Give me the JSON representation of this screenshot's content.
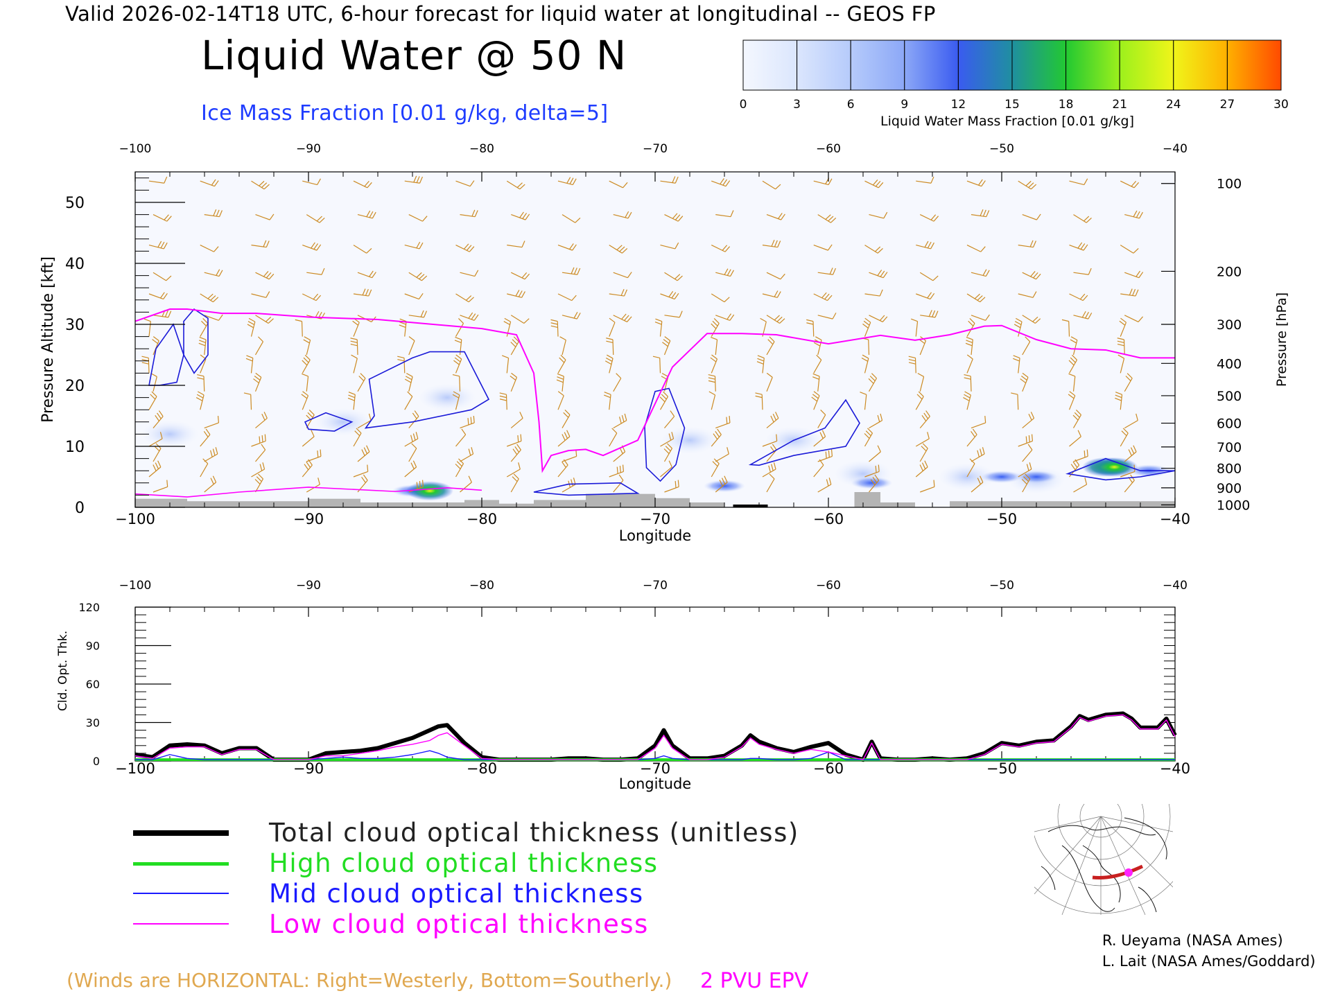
{
  "header": {
    "line": "Valid 2026-02-14T18 UTC, 6-hour forecast for liquid water at longitudinal -- GEOS FP",
    "title": "Liquid Water @ 50 N",
    "contour_label": "Ice Mass Fraction [0.01 g/kg, delta=5]"
  },
  "colorbar": {
    "label": "Liquid Water Mass Fraction [0.01 g/kg]",
    "ticks": [
      "0",
      "3",
      "6",
      "9",
      "12",
      "15",
      "18",
      "21",
      "24",
      "27",
      "30"
    ],
    "colors": [
      "#f4f7fe",
      "#dbe6fd",
      "#b6cbfb",
      "#8ca8f7",
      "#3a5bf0",
      "#1f8fa0",
      "#22c832",
      "#9cf01c",
      "#f0f51a",
      "#ffb000",
      "#ff4a00"
    ]
  },
  "legend": [
    {
      "label": "Total cloud optical thickness (unitless)",
      "color": "#000000"
    },
    {
      "label": "High cloud optical thickness",
      "color": "#22dd22"
    },
    {
      "label": "Mid cloud optical thickness",
      "color": "#1a1aff"
    },
    {
      "label": "Low cloud optical thickness",
      "color": "#ff00ff"
    }
  ],
  "notes": {
    "winds": "(Winds are HORIZONTAL: Right=Westerly, Bottom=Southerly.)",
    "pv": "2 PVU EPV"
  },
  "credits": [
    "R. Ueyama (NASA Ames)",
    "L. Lait (NASA Ames/Goddard)"
  ],
  "chart_data": [
    {
      "type": "heatmap",
      "title": "Liquid Water @ 50 N",
      "xlabel": "Longitude",
      "ylabel": "Pressure Altitude [kft]",
      "y2label": "Pressure [hPa]",
      "xlim": [
        -100,
        -40
      ],
      "ylim": [
        0,
        55
      ],
      "xticks": [
        "-100",
        "-90",
        "-80",
        "-70",
        "-60",
        "-50",
        "-40"
      ],
      "yticks": [
        "0",
        "10",
        "20",
        "30",
        "40",
        "50"
      ],
      "pressure_ticks": [
        {
          "label": "100",
          "kft": 53.1
        },
        {
          "label": "200",
          "kft": 38.7
        },
        {
          "label": "300",
          "kft": 30.0
        },
        {
          "label": "400",
          "kft": 23.6
        },
        {
          "label": "500",
          "kft": 18.3
        },
        {
          "label": "600",
          "kft": 13.8
        },
        {
          "label": "700",
          "kft": 9.9
        },
        {
          "label": "800",
          "kft": 6.4
        },
        {
          "label": "900",
          "kft": 3.2
        },
        {
          "label": "1000",
          "kft": 0.4
        }
      ],
      "liquid_water_blobs": [
        {
          "lon": -84.0,
          "kft": 2.7,
          "value": 12
        },
        {
          "lon": -83.0,
          "kft": 2.7,
          "value": 16
        },
        {
          "lon": -66.0,
          "kft": 3.5,
          "value": 9
        },
        {
          "lon": -57.5,
          "kft": 4.0,
          "value": 9
        },
        {
          "lon": -50.0,
          "kft": 5.0,
          "value": 9
        },
        {
          "lon": -48.0,
          "kft": 5.0,
          "value": 8
        },
        {
          "lon": -44.0,
          "kft": 6.6,
          "value": 16
        },
        {
          "lon": -43.5,
          "kft": 6.6,
          "value": 20
        },
        {
          "lon": -41.5,
          "kft": 6.0,
          "value": 8
        }
      ],
      "epv_2pvu_line": {
        "lon": [
          -100,
          -98,
          -97,
          -95,
          -93,
          -90,
          -88,
          -86,
          -84,
          -82,
          -80,
          -78,
          -77,
          -76.7,
          -76.5,
          -76,
          -75,
          -74,
          -73,
          -71,
          -69.5,
          -69,
          -67,
          -65,
          -63,
          -60,
          -57,
          -55,
          -53,
          -51,
          -50,
          -48,
          -46,
          -44,
          -42,
          -40
        ],
        "kft": [
          30.5,
          32.5,
          32.5,
          31.8,
          31.8,
          31.2,
          31.0,
          30.8,
          30.3,
          29.8,
          29.3,
          28.3,
          22,
          14,
          6,
          8.5,
          9.3,
          9.5,
          8.5,
          11,
          20,
          23,
          28.5,
          28.5,
          28.3,
          26.8,
          28.2,
          27.4,
          28.3,
          29.7,
          29.8,
          27.5,
          26.0,
          25.8,
          24.5,
          24.5
        ]
      },
      "ice_contour_regions": [
        {
          "lon": -98.6,
          "kft": 25.5
        },
        {
          "lon": -96.7,
          "kft": 27.0
        },
        {
          "lon": -89.0,
          "kft": 14.0
        },
        {
          "lon": -82.5,
          "kft": 18.0
        },
        {
          "lon": -69.3,
          "kft": 11.5
        },
        {
          "lon": -62.0,
          "kft": 10.5
        },
        {
          "lon": -45.0,
          "kft": 6.5
        }
      ]
    },
    {
      "type": "line",
      "xlabel": "Longitude",
      "ylabel": "Cld. Opt. Thk.",
      "xlim": [
        -100,
        -40
      ],
      "ylim": [
        0,
        120
      ],
      "xticks": [
        "-100",
        "-90",
        "-80",
        "-70",
        "-60",
        "-50",
        "-40"
      ],
      "yticks": [
        "0",
        "30",
        "60",
        "90",
        "120"
      ],
      "x": [
        -100,
        -99,
        -98,
        -97,
        -96,
        -95,
        -94,
        -93,
        -92,
        -91,
        -90,
        -89,
        -88,
        -87,
        -86,
        -85,
        -84,
        -83,
        -82.5,
        -82,
        -81,
        -80,
        -79,
        -78,
        -77,
        -76,
        -75,
        -74,
        -73,
        -72,
        -71,
        -70,
        -69.5,
        -69,
        -68,
        -67,
        -66,
        -65,
        -64.5,
        -64,
        -63,
        -62,
        -61,
        -60,
        -59,
        -58,
        -57.5,
        -57,
        -56,
        -55,
        -54,
        -53,
        -52,
        -51,
        -50,
        -49,
        -48,
        -47,
        -46,
        -45.5,
        -45,
        -44,
        -43,
        -42.5,
        -42,
        -41,
        -40.5,
        -40
      ],
      "series": [
        {
          "name": "Total cloud optical thickness (unitless)",
          "values": [
            5,
            3,
            12,
            13,
            12,
            6,
            10,
            10,
            1,
            1,
            1,
            6,
            7,
            8,
            10,
            14,
            18,
            24,
            27,
            28,
            14,
            3,
            1,
            1,
            1,
            1,
            2,
            2,
            1,
            1,
            2,
            12,
            24,
            12,
            2,
            2,
            4,
            12,
            20,
            15,
            10,
            7,
            11,
            14,
            5,
            1,
            15,
            2,
            1,
            1,
            2,
            1,
            2,
            6,
            14,
            12,
            15,
            16,
            27,
            35,
            32,
            36,
            37,
            33,
            26,
            26,
            33,
            20
          ]
        },
        {
          "name": "High cloud optical thickness",
          "values": [
            1,
            1,
            1,
            1,
            1,
            1,
            1,
            1,
            1,
            1,
            1,
            1,
            1,
            1,
            1,
            1,
            1,
            1,
            1,
            1,
            1,
            1,
            1,
            1,
            1,
            1,
            1,
            1,
            1,
            1,
            1,
            1,
            1,
            1,
            1,
            1,
            1,
            1,
            1,
            1,
            1,
            1,
            1,
            1,
            1,
            1,
            1,
            1,
            1,
            1,
            1,
            1,
            1,
            1,
            1,
            1,
            1,
            1,
            1,
            1,
            1,
            1,
            1,
            1,
            1,
            1,
            1,
            1
          ]
        },
        {
          "name": "Mid cloud optical thickness",
          "values": [
            1,
            1,
            5,
            2,
            1,
            1,
            1,
            1,
            1,
            1,
            1,
            2,
            3,
            2,
            2,
            3,
            5,
            8,
            6,
            3,
            1,
            1,
            1,
            1,
            1,
            1,
            1,
            1,
            1,
            1,
            1,
            2,
            4,
            2,
            1,
            1,
            1,
            1,
            2,
            2,
            1,
            1,
            2,
            7,
            1,
            1,
            1,
            1,
            1,
            1,
            1,
            1,
            1,
            1,
            1,
            1,
            1,
            1,
            1,
            1,
            1,
            1,
            1,
            1,
            1,
            1,
            1,
            1
          ]
        },
        {
          "name": "Low cloud optical thickness",
          "values": [
            4,
            2,
            10,
            11,
            11,
            5,
            9,
            9,
            1,
            1,
            1,
            4,
            4,
            6,
            8,
            11,
            13,
            16,
            20,
            22,
            12,
            2,
            1,
            1,
            1,
            1,
            1,
            1,
            1,
            1,
            1,
            10,
            20,
            10,
            1,
            1,
            3,
            11,
            18,
            13,
            9,
            6,
            9,
            7,
            4,
            1,
            14,
            1,
            1,
            1,
            1,
            1,
            1,
            5,
            13,
            11,
            14,
            15,
            26,
            34,
            31,
            35,
            36,
            32,
            25,
            25,
            32,
            19
          ]
        }
      ]
    }
  ]
}
